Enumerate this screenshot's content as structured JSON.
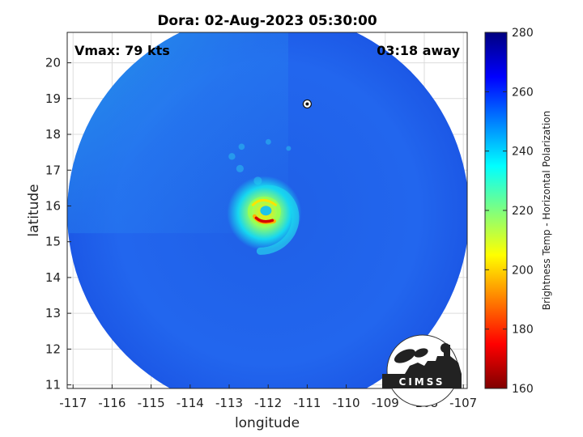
{
  "title": "Dora: 02-Aug-2023 05:30:00",
  "annotations": {
    "vmax": "Vmax: 79 kts",
    "away": "03:18 away"
  },
  "axes": {
    "xlabel": "longitude",
    "ylabel": "latitude",
    "xlim": [
      -117.15,
      -106.9
    ],
    "ylim": [
      10.9,
      20.85
    ],
    "xticks": [
      -117,
      -116,
      -115,
      -114,
      -113,
      -112,
      -111,
      -110,
      -109,
      -108,
      -107
    ],
    "yticks": [
      11,
      12,
      13,
      14,
      15,
      16,
      17,
      18,
      19,
      20
    ],
    "grid": true
  },
  "colorbar": {
    "label": "Brightness Temp - Horizontal Polarization",
    "range": [
      160,
      280
    ],
    "ticks": [
      160,
      180,
      200,
      220,
      240,
      260,
      280
    ],
    "colormap": "jet"
  },
  "swath": {
    "center_lon": -112.0,
    "center_lat": 15.8,
    "radius_deg": 5.15
  },
  "storm": {
    "center_lon": -112.1,
    "center_lat": 15.8,
    "eye_temp": 178
  },
  "logo": {
    "text": "CIMSS"
  },
  "colors": {
    "background_swath": "#1f5ce8",
    "cold_core": "#d40000",
    "warm_outer": "#0a3cd6"
  }
}
